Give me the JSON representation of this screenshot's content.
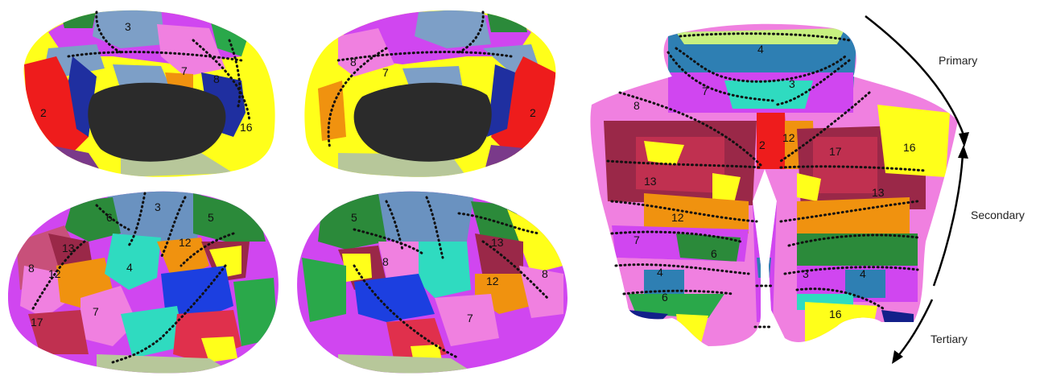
{
  "network_labels": {
    "p1": "3",
    "p2": "7",
    "p3": "8",
    "p4": "2",
    "p5": "16",
    "p6": "8",
    "p7": "7",
    "p8": "2",
    "p9": "6",
    "p10": "3",
    "p11": "5",
    "p12": "13",
    "p13": "12",
    "p14": "8",
    "p15": "12",
    "p16": "4",
    "p17": "17",
    "p18": "7",
    "p19": "5",
    "p20": "8",
    "p21": "13",
    "p22": "12",
    "p23": "8",
    "p24": "7",
    "c1": "4",
    "c2": "7",
    "c3": "3",
    "c4": "8",
    "c5": "2",
    "c6": "12",
    "c7": "17",
    "c8": "16",
    "c9": "13",
    "c10": "13",
    "c11": "12",
    "c12": "7",
    "c13": "6",
    "c14": "4",
    "c15": "6",
    "c16": "3",
    "c17": "4",
    "c18": "16"
  },
  "gradient_labels": {
    "primary": "Primary",
    "secondary": "Secondary",
    "tertiary": "Tertiary"
  },
  "colors": {
    "network_2": "#ee1c1c",
    "network_3": "#7d9fc7",
    "network_4": "#2e7fb3",
    "network_5": "#2b8a3a",
    "network_6": "#2aa84a",
    "network_7": "#d046f0",
    "network_8": "#f080e0",
    "network_12": "#f0920f",
    "network_13": "#9a2848",
    "network_16": "#ffff1a",
    "network_17": "#c03050",
    "medial_wall": "#2b2b2b",
    "dmn_blue": "#1c3fe0",
    "teal": "#2fdbc0"
  }
}
